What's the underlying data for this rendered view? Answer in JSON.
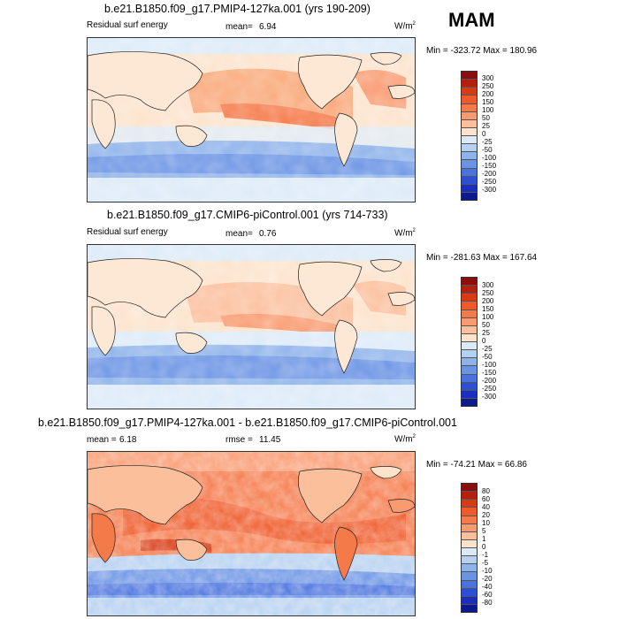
{
  "season": "MAM",
  "panels": [
    {
      "title": "b.e21.B1850.f09_g17.PMIP4-127ka.001 (yrs 190-209)",
      "left_label": "Residual surf energy",
      "mean_label": "mean=",
      "mean_value": "6.94",
      "units": "W/m",
      "units_sup": "2",
      "minmax": "Min = -323.72 Max = 180.96",
      "colorbar_labels": [
        "300",
        "250",
        "200",
        "150",
        "100",
        "50",
        "25",
        "0",
        "-25",
        "-50",
        "-100",
        "-150",
        "-200",
        "-250",
        "-300"
      ],
      "colors": [
        "#8c0d0d",
        "#b4200f",
        "#d83a14",
        "#ef5a2a",
        "#f57a4a",
        "#f99a70",
        "#fbbf9c",
        "#fde3cc",
        "#dceaf8",
        "#b6d0f0",
        "#8eb2ea",
        "#6a93e4",
        "#4a72de",
        "#2d4fd4",
        "#1a2fbf",
        "#0d1a8c"
      ]
    },
    {
      "title": "b.e21.B1850.f09_g17.CMIP6-piControl.001 (yrs 714-733)",
      "left_label": "Residual surf energy",
      "mean_label": "mean=",
      "mean_value": "0.76",
      "units": "W/m",
      "units_sup": "2",
      "minmax": "Min = -281.63 Max = 167.64",
      "colorbar_labels": [
        "300",
        "250",
        "200",
        "150",
        "100",
        "50",
        "25",
        "0",
        "-25",
        "-50",
        "-100",
        "-150",
        "-200",
        "-250",
        "-300"
      ],
      "colors": [
        "#8c0d0d",
        "#b4200f",
        "#d83a14",
        "#ef5a2a",
        "#f57a4a",
        "#f99a70",
        "#fbbf9c",
        "#fde3cc",
        "#dceaf8",
        "#b6d0f0",
        "#8eb2ea",
        "#6a93e4",
        "#4a72de",
        "#2d4fd4",
        "#1a2fbf",
        "#0d1a8c"
      ]
    },
    {
      "title": "b.e21.B1850.f09_g17.PMIP4-127ka.001 - b.e21.B1850.f09_g17.CMIP6-piControl.001",
      "mean_label": "mean =",
      "mean_value": "6.18",
      "rmse_label": "rmse =",
      "rmse_value": "11.45",
      "units": "W/m",
      "units_sup": "2",
      "minmax": "Min = -74.21 Max =  66.86",
      "colorbar_labels": [
        "80",
        "60",
        "40",
        "20",
        "10",
        "5",
        "1",
        "0",
        "-1",
        "-5",
        "-10",
        "-20",
        "-40",
        "-60",
        "-80"
      ],
      "colors": [
        "#8c0d0d",
        "#b4200f",
        "#d83a14",
        "#ef5a2a",
        "#f57a4a",
        "#f99a70",
        "#fbbf9c",
        "#fde3cc",
        "#dceaf8",
        "#b6d0f0",
        "#8eb2ea",
        "#6a93e4",
        "#4a72de",
        "#2d4fd4",
        "#1a2fbf",
        "#0d1a8c"
      ]
    }
  ]
}
